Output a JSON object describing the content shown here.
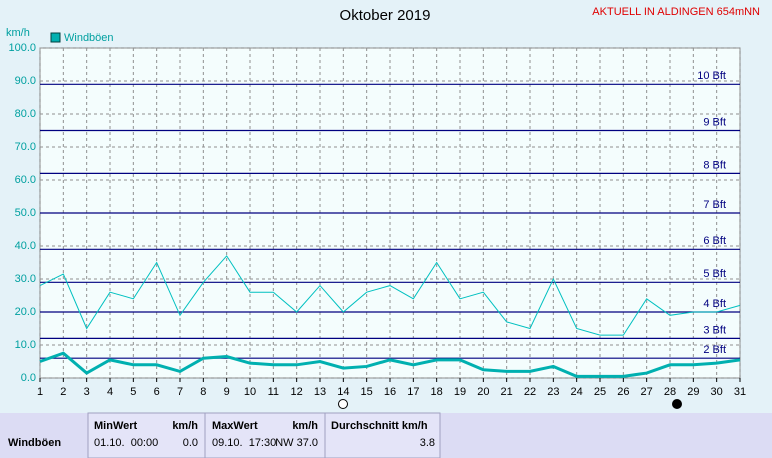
{
  "header": {
    "station": "AKTUELL IN ALDINGEN 654mNN"
  },
  "chart_data": {
    "type": "line",
    "title": "Oktober 2019",
    "y_label": "km/h",
    "x": [
      1,
      2,
      3,
      4,
      5,
      6,
      7,
      8,
      9,
      10,
      11,
      12,
      13,
      14,
      15,
      16,
      17,
      18,
      19,
      20,
      21,
      22,
      23,
      24,
      25,
      26,
      27,
      28,
      29,
      30,
      31
    ],
    "xlim": [
      1,
      31
    ],
    "xticks": [
      1,
      2,
      3,
      4,
      5,
      6,
      7,
      8,
      9,
      10,
      11,
      12,
      13,
      14,
      15,
      16,
      17,
      18,
      19,
      20,
      21,
      22,
      23,
      24,
      25,
      26,
      27,
      28,
      29,
      30,
      31
    ],
    "ylim": [
      0,
      100
    ],
    "yticks": [
      {
        "value": 0,
        "label": "0.0"
      },
      {
        "value": 10,
        "label": "10.0"
      },
      {
        "value": 20,
        "label": "20.0"
      },
      {
        "value": 30,
        "label": "30.0"
      },
      {
        "value": 40,
        "label": "40.0"
      },
      {
        "value": 50,
        "label": "50.0"
      },
      {
        "value": 60,
        "label": "60.0"
      },
      {
        "value": 70,
        "label": "70.0"
      },
      {
        "value": 80,
        "label": "80.0"
      },
      {
        "value": 90,
        "label": "90.0"
      },
      {
        "value": 100,
        "label": "100.0"
      }
    ],
    "grid": true,
    "bft_lines": [
      {
        "value": 6,
        "label": "2 Bft"
      },
      {
        "value": 12,
        "label": "3 Bft"
      },
      {
        "value": 20,
        "label": "4 Bft"
      },
      {
        "value": 29,
        "label": "5 Bft"
      },
      {
        "value": 39,
        "label": "6 Bft"
      },
      {
        "value": 50,
        "label": "7 Bft"
      },
      {
        "value": 62,
        "label": "8 Bft"
      },
      {
        "value": 75,
        "label": "9 Bft"
      },
      {
        "value": 89,
        "label": "10 Bft"
      }
    ],
    "bft_color": "#000080",
    "series": [
      {
        "name": "Windböen",
        "color": "#00c0c0",
        "width": 1,
        "values": [
          28,
          31.5,
          15,
          26,
          24,
          35,
          19,
          29,
          37,
          26,
          26,
          20,
          28,
          20,
          26,
          28,
          24,
          35,
          24,
          26,
          17,
          15,
          30,
          15,
          13,
          13,
          24,
          19,
          20,
          20,
          22
        ]
      },
      {
        "color": "#00b0b0",
        "width": 3,
        "values": [
          5,
          7.5,
          1.5,
          5.5,
          4,
          4,
          2,
          6,
          6.5,
          4.5,
          4,
          4,
          5,
          3,
          3.5,
          5.5,
          4,
          5.5,
          5.5,
          2.5,
          2,
          2,
          3.5,
          0.5,
          0.5,
          0.5,
          1.5,
          4,
          4,
          4.5,
          5.5
        ]
      }
    ]
  },
  "table": {
    "headers": [
      "MinWert",
      "km/h",
      "MaxWert",
      "km/h",
      "Durchschnitt km/h"
    ],
    "rows": [
      [
        "Windböen",
        "01.10.  00:00",
        "0.0",
        "09.10.  17:30",
        "NW 37.0",
        "3.8"
      ]
    ]
  }
}
